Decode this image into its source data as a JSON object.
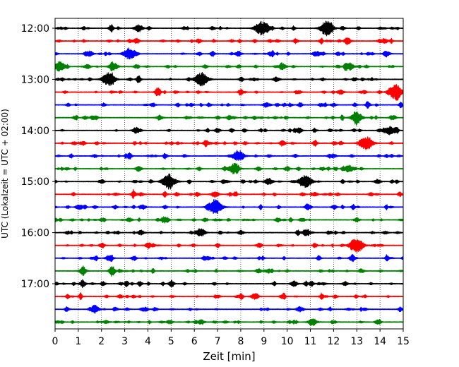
{
  "chart_data": {
    "type": "line",
    "chart_kind": "helicorder seismogram",
    "xlabel": "Zeit  [min]",
    "ylabel": "UTC (Lokalzeit = UTC + 02:00)",
    "xlim": [
      0,
      15
    ],
    "x_ticks": [
      0,
      1,
      2,
      3,
      4,
      5,
      6,
      7,
      8,
      9,
      10,
      11,
      12,
      13,
      14,
      15
    ],
    "x_tick_labels": [
      "0",
      "1",
      "2",
      "3",
      "4",
      "5",
      "6",
      "7",
      "8",
      "9",
      "10",
      "11",
      "12",
      "13",
      "14",
      "15"
    ],
    "y_tick_labels": [
      "12:00",
      "13:00",
      "14:00",
      "15:00",
      "16:00",
      "17:00"
    ],
    "grid": "vertical dotted at each minute",
    "trace_colors": [
      "#000000",
      "#ff0000",
      "#0000ff",
      "#008000"
    ],
    "trace_count": 24,
    "row_minutes": 15,
    "series": [
      {
        "start": "12:00",
        "color": "#000000",
        "events": [
          [
            3.6,
            0.55
          ],
          [
            8.9,
            1.0
          ],
          [
            11.7,
            0.95
          ],
          [
            2.4,
            0.25
          ],
          [
            6.8,
            0.25
          ]
        ]
      },
      {
        "start": "12:15",
        "color": "#ff0000",
        "events": [
          [
            3.5,
            0.35
          ],
          [
            6.2,
            0.25
          ],
          [
            12.6,
            0.4
          ],
          [
            14.0,
            0.25
          ]
        ]
      },
      {
        "start": "12:30",
        "color": "#0000ff",
        "events": [
          [
            1.5,
            0.4
          ],
          [
            3.2,
            0.85
          ],
          [
            7.9,
            0.35
          ],
          [
            11.2,
            0.3
          ],
          [
            14.3,
            0.35
          ]
        ]
      },
      {
        "start": "12:45",
        "color": "#008000",
        "events": [
          [
            0.2,
            0.75
          ],
          [
            2.5,
            0.55
          ],
          [
            9.8,
            0.45
          ],
          [
            12.7,
            0.55
          ]
        ]
      },
      {
        "start": "13:00",
        "color": "#000000",
        "events": [
          [
            2.3,
            0.95
          ],
          [
            6.3,
            1.0
          ],
          [
            3.6,
            0.3
          ],
          [
            9.5,
            0.3
          ]
        ]
      },
      {
        "start": "13:15",
        "color": "#ff0000",
        "events": [
          [
            14.7,
            1.0
          ],
          [
            12.3,
            0.35
          ],
          [
            8.0,
            0.25
          ]
        ]
      },
      {
        "start": "13:30",
        "color": "#0000ff",
        "events": [
          [
            9.1,
            0.35
          ],
          [
            4.2,
            0.25
          ],
          [
            12.0,
            0.25
          ]
        ]
      },
      {
        "start": "13:45",
        "color": "#008000",
        "events": [
          [
            13.0,
            0.8
          ],
          [
            4.5,
            0.35
          ],
          [
            1.3,
            0.25
          ],
          [
            7.5,
            0.3
          ]
        ]
      },
      {
        "start": "14:00",
        "color": "#000000",
        "events": [
          [
            14.4,
            0.6
          ],
          [
            3.5,
            0.45
          ],
          [
            10.5,
            0.35
          ],
          [
            7.0,
            0.3
          ]
        ]
      },
      {
        "start": "14:15",
        "color": "#ff0000",
        "events": [
          [
            13.4,
            0.95
          ],
          [
            1.2,
            0.3
          ],
          [
            6.5,
            0.3
          ],
          [
            9.8,
            0.35
          ]
        ]
      },
      {
        "start": "14:30",
        "color": "#0000ff",
        "events": [
          [
            7.9,
            0.85
          ],
          [
            3.2,
            0.3
          ],
          [
            12.0,
            0.3
          ]
        ]
      },
      {
        "start": "14:45",
        "color": "#008000",
        "events": [
          [
            7.7,
            0.75
          ],
          [
            12.7,
            0.45
          ],
          [
            3.6,
            0.35
          ],
          [
            10.0,
            0.3
          ]
        ]
      },
      {
        "start": "15:00",
        "color": "#000000",
        "events": [
          [
            4.9,
            1.0
          ],
          [
            10.8,
            0.9
          ],
          [
            9.2,
            0.5
          ],
          [
            13.9,
            0.35
          ],
          [
            2.0,
            0.3
          ]
        ]
      },
      {
        "start": "15:15",
        "color": "#ff0000",
        "events": [
          [
            6.9,
            0.45
          ],
          [
            3.4,
            0.3
          ],
          [
            11.2,
            0.3
          ]
        ]
      },
      {
        "start": "15:30",
        "color": "#0000ff",
        "events": [
          [
            6.9,
            1.0
          ],
          [
            10.9,
            0.35
          ],
          [
            1.0,
            0.3
          ],
          [
            3.8,
            0.3
          ]
        ]
      },
      {
        "start": "15:45",
        "color": "#008000",
        "events": [
          [
            4.7,
            0.45
          ],
          [
            3.2,
            0.3
          ],
          [
            9.6,
            0.3
          ],
          [
            13.0,
            0.3
          ]
        ]
      },
      {
        "start": "16:00",
        "color": "#000000",
        "events": [
          [
            6.3,
            0.55
          ],
          [
            10.8,
            0.45
          ],
          [
            3.7,
            0.35
          ],
          [
            8.0,
            0.3
          ]
        ]
      },
      {
        "start": "16:15",
        "color": "#ff0000",
        "events": [
          [
            13.0,
            1.0
          ],
          [
            4.0,
            0.3
          ],
          [
            8.8,
            0.3
          ]
        ]
      },
      {
        "start": "16:30",
        "color": "#0000ff",
        "events": [
          [
            2.3,
            0.35
          ],
          [
            12.8,
            0.35
          ],
          [
            6.5,
            0.25
          ]
        ]
      },
      {
        "start": "16:45",
        "color": "#008000",
        "events": [
          [
            1.2,
            0.45
          ],
          [
            2.5,
            0.35
          ],
          [
            9.2,
            0.3
          ],
          [
            13.2,
            0.3
          ]
        ]
      },
      {
        "start": "17:00",
        "color": "#000000",
        "events": [
          [
            1.2,
            0.4
          ],
          [
            10.3,
            0.4
          ],
          [
            5.0,
            0.3
          ],
          [
            12.5,
            0.3
          ]
        ]
      },
      {
        "start": "17:15",
        "color": "#ff0000",
        "events": [
          [
            8.6,
            0.45
          ],
          [
            2.8,
            0.25
          ],
          [
            11.5,
            0.25
          ]
        ]
      },
      {
        "start": "17:30",
        "color": "#0000ff",
        "events": [
          [
            1.7,
            0.6
          ],
          [
            3.9,
            0.3
          ],
          [
            10.5,
            0.3
          ]
        ]
      },
      {
        "start": "17:45",
        "color": "#008000",
        "events": [
          [
            11.1,
            0.55
          ],
          [
            6.3,
            0.35
          ],
          [
            2.2,
            0.25
          ],
          [
            13.9,
            0.3
          ]
        ]
      }
    ]
  }
}
